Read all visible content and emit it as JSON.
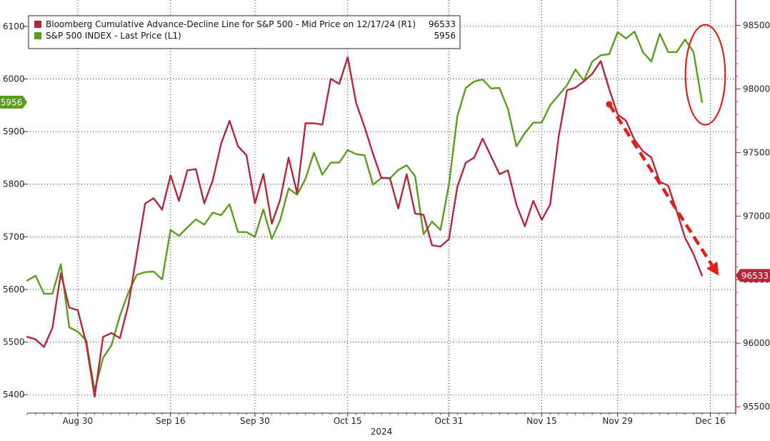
{
  "chart_data": {
    "type": "line",
    "title": "",
    "x_title": "2024",
    "x_ticks": [
      {
        "label": "Aug 30",
        "x": 6
      },
      {
        "label": "Sep 16",
        "x": 17
      },
      {
        "label": "Sep 30",
        "x": 27
      },
      {
        "label": "Oct 15",
        "x": 38
      },
      {
        "label": "Oct 31",
        "x": 50
      },
      {
        "label": "Nov 15",
        "x": 61
      },
      {
        "label": "Nov 29",
        "x": 70
      },
      {
        "label": "Dec 16",
        "x": 81
      }
    ],
    "xlim": [
      0,
      84
    ],
    "y_left": {
      "lim": [
        5365,
        6150
      ],
      "ticks": [
        5400,
        5500,
        5600,
        5700,
        5800,
        5900,
        6000,
        6100
      ]
    },
    "y_right": {
      "lim": [
        95450,
        98700
      ],
      "ticks": [
        95500,
        96000,
        96500,
        97000,
        97500,
        98000,
        98500
      ]
    },
    "legend": {
      "position": "top-left",
      "items": [
        {
          "label": "Bloomberg Cumulative Advance-Decline Line for S&P 500 - Mid Price on 12/17/24 (R1)",
          "value": "96533",
          "color": "#b5253c"
        },
        {
          "label": "S&P 500 INDEX - Last Price (L1)",
          "value": "5956",
          "color": "#5c9c1d"
        }
      ]
    },
    "last_labels": {
      "left": "5956",
      "right": "96533"
    },
    "series": [
      {
        "name": "S&P 500 INDEX - Last Price (L1)",
        "axis": "left",
        "color": "#5c9c1d",
        "values": [
          5617,
          5626,
          5592,
          5592,
          5648,
          5528,
          5520,
          5503,
          5408,
          5470,
          5494,
          5550,
          5594,
          5628,
          5633,
          5634,
          5619,
          5713,
          5702,
          5718,
          5733,
          5723,
          5746,
          5741,
          5762,
          5709,
          5709,
          5700,
          5752,
          5696,
          5732,
          5792,
          5780,
          5810,
          5860,
          5818,
          5841,
          5841,
          5865,
          5857,
          5855,
          5799,
          5812,
          5811,
          5827,
          5836,
          5815,
          5705,
          5729,
          5713,
          5799,
          5929,
          5983,
          5995,
          5999,
          5982,
          5983,
          5943,
          5872,
          5897,
          5917,
          5917,
          5950,
          5969,
          5988,
          6018,
          5997,
          6033,
          6045,
          6047,
          6089,
          6077,
          6090,
          6051,
          6033,
          6086,
          6051,
          6051,
          6075,
          6051,
          5956
        ]
      },
      {
        "name": "Bloomberg Cumulative Advance-Decline Line for S&P 500 - Mid Price on 12/17/24 (R1)",
        "axis": "right",
        "color": "#b5253c",
        "values": [
          96050,
          96030,
          95970,
          96120,
          96550,
          96280,
          96260,
          96000,
          95580,
          96050,
          96080,
          96040,
          96300,
          96700,
          97100,
          97140,
          97050,
          97320,
          97120,
          97360,
          97370,
          97100,
          97280,
          97570,
          97750,
          97550,
          97480,
          97100,
          97330,
          96940,
          97130,
          97460,
          97180,
          97730,
          97730,
          97720,
          98080,
          98040,
          98250,
          97890,
          97700,
          97490,
          97300,
          97300,
          97060,
          97330,
          97020,
          97010,
          96770,
          96760,
          96820,
          97230,
          97420,
          97460,
          97610,
          97470,
          97330,
          97360,
          97090,
          96920,
          97120,
          96970,
          97090,
          97620,
          97990,
          98010,
          98060,
          98120,
          98220,
          98000,
          97800,
          97750,
          97600,
          97510,
          97460,
          97270,
          97240,
          97040,
          96830,
          96700,
          96533
        ]
      }
    ],
    "annotations": {
      "arrow": {
        "from": {
          "x": 69,
          "y_right": 97880
        },
        "to": {
          "x": 82,
          "y_right": 96530
        },
        "color": "#e0201b",
        "style": "dashed"
      },
      "ellipse": {
        "center": {
          "x": 80.4,
          "y_left": 6008
        },
        "rx_x": 2.35,
        "ry_left": 95,
        "color": "#e0201b"
      }
    }
  }
}
